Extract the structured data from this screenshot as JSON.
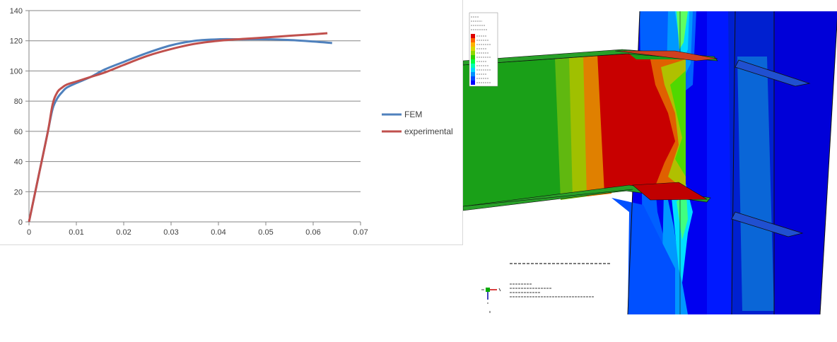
{
  "chart_data": {
    "type": "line",
    "title": "",
    "xlabel": "",
    "ylabel": "",
    "xlim": [
      0,
      0.07
    ],
    "ylim": [
      0,
      140
    ],
    "xticks": [
      0,
      0.01,
      0.02,
      0.03,
      0.04,
      0.05,
      0.06,
      0.07
    ],
    "xtick_labels": [
      "0",
      "0.01",
      "0.02",
      "0.03",
      "0.04",
      "0.05",
      "0.06",
      "0.07"
    ],
    "yticks": [
      0,
      20,
      40,
      60,
      80,
      100,
      120,
      140
    ],
    "ytick_labels": [
      "0",
      "20",
      "40",
      "60",
      "80",
      "100",
      "120",
      "140"
    ],
    "grid": "horizontal",
    "legend_position": "right",
    "series": [
      {
        "name": "FEM",
        "color": "#4f81bd",
        "x": [
          0,
          0.002,
          0.004,
          0.005,
          0.006,
          0.007,
          0.008,
          0.01,
          0.013,
          0.016,
          0.02,
          0.025,
          0.03,
          0.035,
          0.04,
          0.045,
          0.05,
          0.055,
          0.06,
          0.064
        ],
        "y": [
          0,
          30,
          60,
          75,
          82,
          86,
          89,
          92,
          96,
          101,
          106,
          112,
          117,
          120,
          121,
          121,
          121,
          120.5,
          119.5,
          118.5
        ]
      },
      {
        "name": "experimental",
        "color": "#c0504d",
        "x": [
          0,
          0.002,
          0.004,
          0.005,
          0.006,
          0.007,
          0.008,
          0.01,
          0.013,
          0.016,
          0.02,
          0.025,
          0.03,
          0.035,
          0.04,
          0.045,
          0.05,
          0.055,
          0.06,
          0.063
        ],
        "y": [
          0,
          30,
          60,
          78,
          86,
          89,
          91,
          93,
          96,
          99,
          104,
          110,
          114.5,
          118,
          120,
          121.2,
          122.2,
          123.3,
          124.3,
          125
        ]
      }
    ]
  },
  "fea_panel": {
    "description_colors": [
      "#0000ff",
      "#0047ff",
      "#0090ff",
      "#00d8ff",
      "#00ffb0",
      "#00ff40",
      "#2fd000",
      "#90d800",
      "#d8d800",
      "#ffb000",
      "#ff6000",
      "#dd0000"
    ],
    "legend_rows": 12
  }
}
